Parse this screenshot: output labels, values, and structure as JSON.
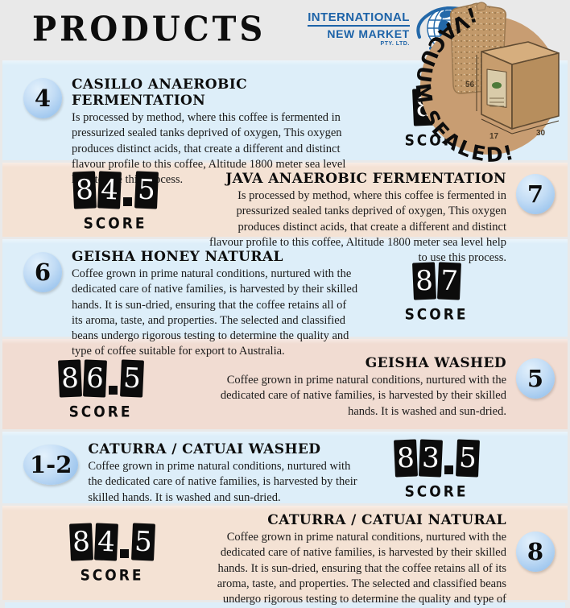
{
  "header": {
    "title": "PRODUCTS",
    "logo": {
      "line1": "INTERNATIONAL",
      "line2": "NEW MARKET",
      "line3": "PTY. LTD."
    }
  },
  "badge": {
    "text": "¡VACUUM SEALED!",
    "box_dims": {
      "height": "56",
      "width": "17",
      "depth": "30"
    }
  },
  "score_label": "SCORE",
  "colors": {
    "row_blue": "#ddeef9",
    "row_peach": "#f4e2d4",
    "row_peach_alt": "#f1dcd2",
    "logo_blue": "#1d63a8",
    "badge_tan": "#c89d72",
    "tile_black": "#0c0c0c"
  },
  "products": [
    {
      "badge": "4",
      "title": "CASILLO ANAEROBIC FERMENTATION",
      "description": "Is processed by method, where this coffee is fermented in pressurized sealed tanks deprived of oxygen, This oxygen produces distinct acids, that create a different and distinct flavour profile to this coffee, Altitude 1800 meter sea level help to use this process.",
      "score": "84"
    },
    {
      "badge": "7",
      "title": "JAVA ANAEROBIC FERMENTATION",
      "description": "Is processed by method, where this coffee is fermented in pressurized sealed tanks deprived of oxygen, This oxygen produces distinct acids, that create a different and distinct flavour profile to this coffee, Altitude 1800 meter sea level help to use this process.",
      "score": "84.5"
    },
    {
      "badge": "6",
      "title": "GEISHA HONEY NATURAL",
      "description": "Coffee grown in prime natural conditions, nurtured with the dedicated care of native families, is harvested by their skilled hands. It is sun-dried, ensuring that the coffee retains all of its aroma, taste, and properties. The selected and classified beans undergo rigorous testing to determine the quality and type of coffee suitable for export to Australia.",
      "score": "87"
    },
    {
      "badge": "5",
      "title": "GEISHA WASHED",
      "description": "Coffee grown in prime natural conditions, nurtured with the dedicated care of native families, is harvested by their skilled hands. It is washed and sun-dried.",
      "score": "86.5"
    },
    {
      "badge": "1-2",
      "title": "CATURRA / CATUAI WASHED",
      "description": "Coffee grown in prime natural conditions, nurtured with the dedicated care of native families, is harvested by their skilled hands. It is washed and sun-dried.",
      "score": "83.5"
    },
    {
      "badge": "8",
      "title": "CATURRA / CATUAI NATURAL",
      "description": "Coffee grown in prime natural conditions, nurtured with the dedicated care of native families, is harvested by their skilled hands. It is sun-dried, ensuring that the coffee retains all of its aroma, taste, and properties. The selected and classified beans undergo rigorous testing to determine the quality and type of coffee suitable for export to Australia.",
      "score": "84.5"
    }
  ]
}
